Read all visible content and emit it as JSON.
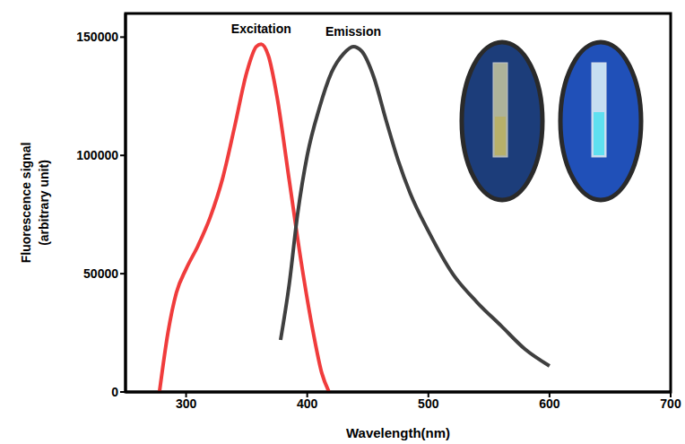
{
  "chart_data": {
    "type": "line",
    "xlabel": "Wavelength(nm)",
    "ylabel": "Fluorescence signal (arbitrary unit)",
    "xlim": [
      250,
      700
    ],
    "xticks": [
      300,
      400,
      500,
      600,
      700
    ],
    "ylim": [
      0,
      160000
    ],
    "yticks": [
      0,
      50000,
      100000,
      150000
    ],
    "grid": false,
    "series": [
      {
        "name": "Excitation",
        "color": "#f03c3c",
        "x": [
          278,
          285,
          292,
          300,
          310,
          320,
          330,
          340,
          350,
          358,
          362,
          368,
          375,
          385,
          395,
          405,
          412,
          418
        ],
        "values": [
          0,
          25000,
          42000,
          52000,
          62000,
          74000,
          90000,
          112000,
          135000,
          146000,
          147000,
          142000,
          125000,
          90000,
          55000,
          25000,
          8000,
          0
        ]
      },
      {
        "name": "Emission",
        "color": "#3f3f3f",
        "x": [
          378,
          385,
          392,
          400,
          410,
          420,
          430,
          438,
          445,
          455,
          465,
          475,
          485,
          500,
          520,
          540,
          560,
          580,
          600
        ],
        "values": [
          22000,
          45000,
          75000,
          100000,
          120000,
          135000,
          143000,
          146000,
          144000,
          133000,
          115000,
          98000,
          84000,
          68000,
          50000,
          38000,
          28000,
          18000,
          11000
        ]
      }
    ]
  }
}
